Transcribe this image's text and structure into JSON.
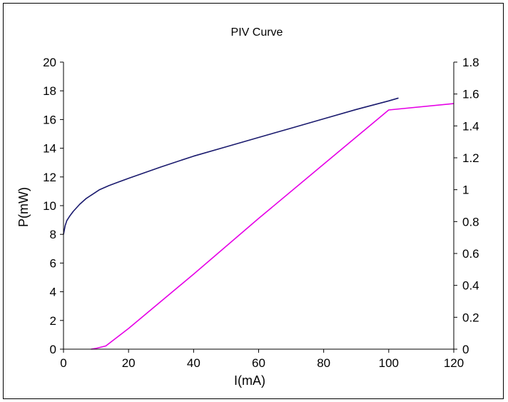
{
  "chart_data": {
    "type": "line",
    "title": "PIV Curve",
    "xlabel": "I(mA)",
    "ylabel": "P(mW)",
    "y2label": "",
    "xlim": [
      0,
      120
    ],
    "ylim": [
      0,
      20
    ],
    "y2lim": [
      0,
      1.8
    ],
    "x_ticks": [
      "0",
      "20",
      "40",
      "60",
      "80",
      "100",
      "120"
    ],
    "y_ticks": [
      "0",
      "2",
      "4",
      "6",
      "8",
      "10",
      "12",
      "14",
      "16",
      "18",
      "20"
    ],
    "y2_ticks": [
      "0",
      "0.2",
      "0.4",
      "0.6",
      "0.8",
      "1",
      "1.2",
      "1.4",
      "1.6",
      "1.8"
    ],
    "grid": false,
    "legend": "none",
    "series": [
      {
        "axis": "left",
        "color": "#1a1a6e",
        "x": [
          0,
          0.5,
          1,
          2,
          3,
          5,
          7,
          9,
          11,
          14,
          17,
          20,
          30,
          40,
          50,
          60,
          70,
          80,
          90,
          100,
          103
        ],
        "y": [
          8,
          8.6,
          8.95,
          9.3,
          9.6,
          10.1,
          10.5,
          10.8,
          11.1,
          11.4,
          11.65,
          11.9,
          12.7,
          13.45,
          14.1,
          14.75,
          15.4,
          16.05,
          16.7,
          17.3,
          17.5
        ]
      },
      {
        "axis": "right",
        "color": "#e600e6",
        "x": [
          8.5,
          10,
          13,
          20,
          40,
          60,
          80,
          100,
          120
        ],
        "y": [
          0,
          0.005,
          0.02,
          0.13,
          0.47,
          0.82,
          1.16,
          1.5,
          1.54
        ]
      }
    ]
  }
}
